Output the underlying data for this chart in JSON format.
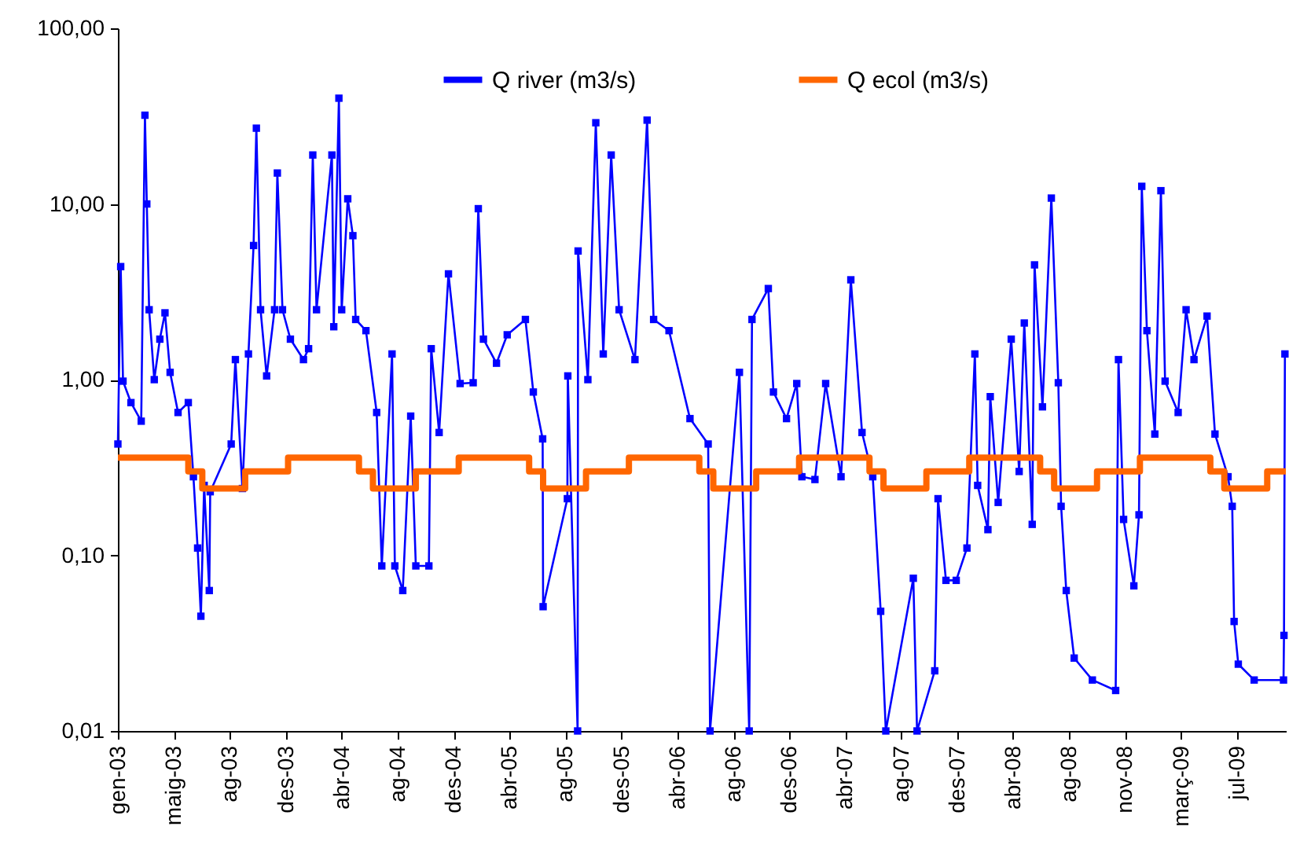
{
  "chart_data": {
    "type": "line",
    "xlim": [
      "2003-01-01",
      "2009-11-10"
    ],
    "ylim": [
      0.01,
      100
    ],
    "log": true,
    "grid": false,
    "legend": "top",
    "yticks": [
      {
        "value": 0.01,
        "label": "0,01"
      },
      {
        "value": 0.1,
        "label": "0,10"
      },
      {
        "value": 1,
        "label": "1,00"
      },
      {
        "value": 10,
        "label": "10,00"
      },
      {
        "value": 100,
        "label": "100,00"
      }
    ],
    "xticks": [
      {
        "value": "2003-01-01",
        "label": "gen-03"
      },
      {
        "value": "2003-05-01",
        "label": "maig-03"
      },
      {
        "value": "2003-08-29",
        "label": "ag-03"
      },
      {
        "value": "2003-12-27",
        "label": "des-03"
      },
      {
        "value": "2004-04-25",
        "label": "abr-04"
      },
      {
        "value": "2004-08-23",
        "label": "ag-04"
      },
      {
        "value": "2004-12-21",
        "label": "des-04"
      },
      {
        "value": "2005-04-20",
        "label": "abr-05"
      },
      {
        "value": "2005-08-18",
        "label": "ag-05"
      },
      {
        "value": "2005-12-16",
        "label": "des-05"
      },
      {
        "value": "2006-04-15",
        "label": "abr-06"
      },
      {
        "value": "2006-08-13",
        "label": "ag-06"
      },
      {
        "value": "2006-12-11",
        "label": "des-06"
      },
      {
        "value": "2007-04-10",
        "label": "abr-07"
      },
      {
        "value": "2007-08-08",
        "label": "ag-07"
      },
      {
        "value": "2007-12-06",
        "label": "des-07"
      },
      {
        "value": "2008-04-04",
        "label": "abr-08"
      },
      {
        "value": "2008-08-02",
        "label": "ag-08"
      },
      {
        "value": "2008-11-30",
        "label": "nov-08"
      },
      {
        "value": "2009-03-30",
        "label": "març-09"
      },
      {
        "value": "2009-07-28",
        "label": "jul-09"
      }
    ],
    "series": [
      {
        "name": "Q river (m3/s)",
        "marker": "square",
        "color": "#0000ff",
        "x": [
          "2003-01-01",
          "2003-01-07",
          "2003-01-12",
          "2003-01-29",
          "2003-02-20",
          "2003-02-28",
          "2003-03-04",
          "2003-03-09",
          "2003-03-20",
          "2003-04-01",
          "2003-04-12",
          "2003-04-23",
          "2003-05-10",
          "2003-06-01",
          "2003-06-12",
          "2003-06-21",
          "2003-06-28",
          "2003-07-05",
          "2003-07-16",
          "2003-07-18",
          "2003-09-01",
          "2003-09-10",
          "2003-09-25",
          "2003-10-08",
          "2003-10-19",
          "2003-10-25",
          "2003-11-03",
          "2003-11-16",
          "2003-12-03",
          "2003-12-09",
          "2003-12-20",
          "2004-01-06",
          "2004-02-03",
          "2004-02-14",
          "2004-02-23",
          "2004-03-02",
          "2004-04-04",
          "2004-04-08",
          "2004-04-19",
          "2004-04-25",
          "2004-05-08",
          "2004-05-19",
          "2004-05-25",
          "2004-06-16",
          "2004-07-09",
          "2004-07-20",
          "2004-08-11",
          "2004-08-17",
          "2004-09-03",
          "2004-09-20",
          "2004-10-01",
          "2004-10-29",
          "2004-11-03",
          "2004-11-20",
          "2004-12-10",
          "2005-01-04",
          "2005-02-01",
          "2005-02-12",
          "2005-02-23",
          "2005-03-23",
          "2005-04-15",
          "2005-05-24",
          "2005-06-10",
          "2005-06-30",
          "2005-07-01",
          "2005-08-22",
          "2005-08-23",
          "2005-09-13",
          "2005-09-14",
          "2005-10-05",
          "2005-10-22",
          "2005-11-07",
          "2005-11-24",
          "2005-12-11",
          "2006-01-14",
          "2006-02-09",
          "2006-02-23",
          "2006-03-28",
          "2006-05-12",
          "2006-06-20",
          "2006-06-24",
          "2006-08-26",
          "2006-09-16",
          "2006-09-22",
          "2006-10-27",
          "2006-11-07",
          "2006-12-05",
          "2006-12-27",
          "2007-01-07",
          "2007-02-04",
          "2007-02-27",
          "2007-04-01",
          "2007-04-22",
          "2007-05-16",
          "2007-06-08",
          "2007-06-25",
          "2007-07-06",
          "2007-09-03",
          "2007-09-11",
          "2007-10-19",
          "2007-10-26",
          "2007-11-12",
          "2007-12-04",
          "2007-12-27",
          "2008-01-13",
          "2008-01-19",
          "2008-02-10",
          "2008-02-15",
          "2008-03-03",
          "2008-03-31",
          "2008-04-17",
          "2008-04-28",
          "2008-05-15",
          "2008-05-20",
          "2008-06-06",
          "2008-06-25",
          "2008-07-10",
          "2008-07-16",
          "2008-07-27",
          "2008-08-13",
          "2008-09-21",
          "2008-11-10",
          "2008-11-16",
          "2008-11-27",
          "2008-12-19",
          "2008-12-30",
          "2009-01-05",
          "2009-01-16",
          "2009-02-02",
          "2009-02-15",
          "2009-02-24",
          "2009-03-24",
          "2009-04-10",
          "2009-04-27",
          "2009-05-25",
          "2009-06-11",
          "2009-07-09",
          "2009-07-18",
          "2009-07-22",
          "2009-07-31",
          "2009-09-03",
          "2009-11-05",
          "2009-11-06",
          "2009-11-08"
        ],
        "values": [
          0.43,
          4.4,
          0.98,
          0.74,
          0.58,
          32,
          10,
          2.5,
          1.0,
          1.7,
          2.4,
          1.1,
          0.65,
          0.74,
          0.28,
          0.11,
          0.045,
          0.25,
          0.063,
          0.23,
          0.43,
          1.3,
          0.24,
          1.4,
          5.8,
          27,
          2.5,
          1.05,
          2.5,
          15,
          2.5,
          1.7,
          1.3,
          1.5,
          19,
          2.5,
          19,
          2.0,
          40,
          2.5,
          10.7,
          6.6,
          2.2,
          1.9,
          0.65,
          0.087,
          1.4,
          0.087,
          0.063,
          0.62,
          0.087,
          0.087,
          1.5,
          0.5,
          4.0,
          0.95,
          0.96,
          9.4,
          1.7,
          1.24,
          1.8,
          2.2,
          0.85,
          0.46,
          0.051,
          0.21,
          1.05,
          0.01,
          5.4,
          1.0,
          29,
          1.4,
          19,
          2.5,
          1.3,
          30,
          2.2,
          1.9,
          0.6,
          0.43,
          0.01,
          1.1,
          0.01,
          2.2,
          3.3,
          0.85,
          0.6,
          0.95,
          0.28,
          0.27,
          0.95,
          0.28,
          3.7,
          0.5,
          0.28,
          0.048,
          0.01,
          0.074,
          0.01,
          0.022,
          0.21,
          0.072,
          0.072,
          0.11,
          1.4,
          0.25,
          0.14,
          0.8,
          0.2,
          1.7,
          0.3,
          2.1,
          0.15,
          4.5,
          0.7,
          10.8,
          0.96,
          0.19,
          0.063,
          0.026,
          0.0195,
          0.017,
          1.3,
          0.16,
          0.067,
          0.17,
          12.6,
          1.9,
          0.49,
          11.9,
          0.98,
          0.65,
          2.5,
          1.3,
          2.3,
          0.49,
          0.28,
          0.19,
          0.042,
          0.024,
          0.0195,
          0.0195,
          0.035,
          1.4
        ]
      },
      {
        "name": "Q ecol (m3/s)",
        "type": "step",
        "marker": "none",
        "color": "#ff6600",
        "x": [
          "2003-01-01",
          "2003-06-01",
          "2003-07-01",
          "2003-10-01",
          "2004-01-01",
          "2004-06-01",
          "2004-07-01",
          "2004-10-01",
          "2005-01-01",
          "2005-06-01",
          "2005-07-01",
          "2005-10-01",
          "2006-01-01",
          "2006-06-01",
          "2006-07-01",
          "2006-10-01",
          "2007-01-01",
          "2007-06-01",
          "2007-07-01",
          "2007-10-01",
          "2008-01-01",
          "2008-06-01",
          "2008-07-01",
          "2008-10-01",
          "2009-01-01",
          "2009-06-01",
          "2009-07-01",
          "2009-10-01",
          "2009-11-10"
        ],
        "values": [
          0.36,
          0.3,
          0.24,
          0.3,
          0.36,
          0.3,
          0.24,
          0.3,
          0.36,
          0.3,
          0.24,
          0.3,
          0.36,
          0.3,
          0.24,
          0.3,
          0.36,
          0.3,
          0.24,
          0.3,
          0.36,
          0.3,
          0.24,
          0.3,
          0.36,
          0.3,
          0.24,
          0.3,
          0.3
        ]
      }
    ]
  }
}
